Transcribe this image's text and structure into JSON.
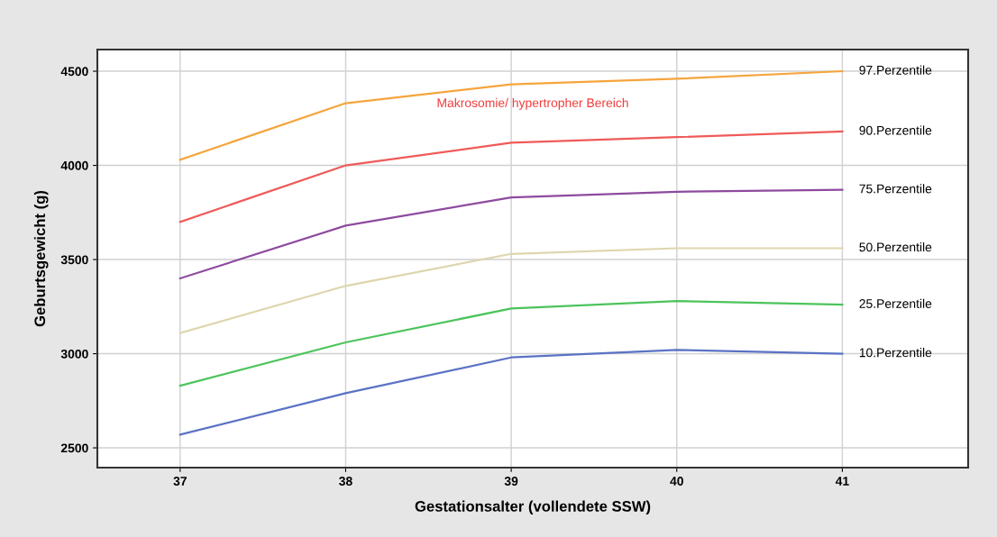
{
  "chart_data": {
    "type": "line",
    "xlabel": "Gestationsalter (vollendete SSW)",
    "ylabel": "Geburtsgewicht (g)",
    "x": [
      37,
      38,
      39,
      40,
      41
    ],
    "series": [
      {
        "name": "97.Perzentile",
        "color": "#f5a53c",
        "values": [
          4030,
          4330,
          4430,
          4460,
          4500
        ]
      },
      {
        "name": "90.Perzentile",
        "color": "#f05a5a",
        "values": [
          3700,
          4000,
          4120,
          4150,
          4180
        ]
      },
      {
        "name": "75.Perzentile",
        "color": "#8e4a9e",
        "values": [
          3400,
          3680,
          3830,
          3860,
          3870
        ]
      },
      {
        "name": "50.Perzentile",
        "color": "#ddd6ae",
        "values": [
          3110,
          3360,
          3530,
          3560,
          3560
        ]
      },
      {
        "name": "25.Perzentile",
        "color": "#4cc45c",
        "values": [
          2830,
          3060,
          3240,
          3280,
          3260
        ]
      },
      {
        "name": "10.Perzentile",
        "color": "#5a72c4",
        "values": [
          2570,
          2790,
          2980,
          3020,
          3000
        ]
      }
    ],
    "annotations": [
      "Makrosomie/ hypertropher Bereich"
    ],
    "xlim": [
      36.5,
      41.76
    ],
    "xticks": [
      37,
      38,
      39,
      40,
      41
    ],
    "ylim": [
      2395,
      4615
    ],
    "yticks": [
      2500,
      3000,
      3500,
      4000,
      4500
    ],
    "grid": true,
    "legend": false,
    "marker": "none",
    "line_style": "solid"
  }
}
